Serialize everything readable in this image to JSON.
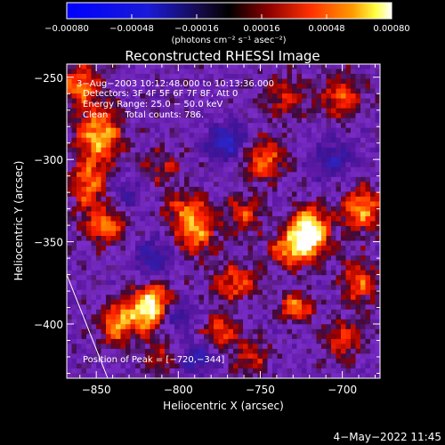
{
  "chart_data": {
    "type": "heatmap",
    "title": "Reconstructed RHESSI Image",
    "xlabel": "Heliocentric X (arcsec)",
    "ylabel": "Heliocentric Y (arcsec)",
    "xlim": [
      -868,
      -677
    ],
    "ylim": [
      -433,
      -242
    ],
    "x_ticks": [
      -850,
      -800,
      -750,
      -700
    ],
    "y_ticks": [
      -250,
      -300,
      -350,
      -400
    ],
    "x_tick_labels": [
      "−850",
      "−800",
      "−750",
      "−700"
    ],
    "y_tick_labels": [
      "−250",
      "−300",
      "−350",
      "−400"
    ],
    "colorbar": {
      "vmin": -0.0008,
      "vmax": 0.0008,
      "ticks": [
        -0.0008,
        -0.00048,
        -0.00016,
        0.00016,
        0.00048,
        0.0008
      ],
      "tick_labels": [
        "−0.00080",
        "−0.00048",
        "−0.00016",
        "0.00016",
        "0.00048",
        "0.00080"
      ],
      "units_label": "(photons cm⁻² s⁻¹ asec⁻²)"
    },
    "annotations": [
      "3−Aug−2003 10:12:48.000 to 10:13:36.000",
      "Detectors: 3F 4F 5F 6F 7F 8F, Att 0",
      "Energy Range: 25.0 − 50.0 keV",
      "Clean      Total counts: 786."
    ],
    "peak_label": "Position of Peak = [−720,−344]",
    "peak_position": [
      -720,
      -344
    ],
    "limb_line": [
      [
        -868,
        -370
      ],
      [
        -843,
        -433
      ]
    ],
    "colors": {
      "negative": "#0000ff",
      "zero": "#000000",
      "low": "#7a2dc8",
      "mid": "#ff2000",
      "high": "#ffff60",
      "max": "#ffffff"
    },
    "blobs": [
      {
        "x": -720,
        "y": -344,
        "amp": 0.0008,
        "sx": 8,
        "sy": 10
      },
      {
        "x": -732,
        "y": -355,
        "amp": 0.00045,
        "sx": 9,
        "sy": 8
      },
      {
        "x": -728,
        "y": -390,
        "amp": 0.0005,
        "sx": 7,
        "sy": 6
      },
      {
        "x": -688,
        "y": -330,
        "amp": 0.0005,
        "sx": 9,
        "sy": 10
      },
      {
        "x": -690,
        "y": -375,
        "amp": 0.0004,
        "sx": 8,
        "sy": 10
      },
      {
        "x": -700,
        "y": -262,
        "amp": 0.0004,
        "sx": 9,
        "sy": 9
      },
      {
        "x": -748,
        "y": -300,
        "amp": 0.00045,
        "sx": 10,
        "sy": 9
      },
      {
        "x": -760,
        "y": -333,
        "amp": 0.00035,
        "sx": 8,
        "sy": 8
      },
      {
        "x": -765,
        "y": -375,
        "amp": 0.0004,
        "sx": 10,
        "sy": 8
      },
      {
        "x": -790,
        "y": -345,
        "amp": 0.0005,
        "sx": 9,
        "sy": 9
      },
      {
        "x": -795,
        "y": -330,
        "amp": 0.00035,
        "sx": 10,
        "sy": 7
      },
      {
        "x": -775,
        "y": -405,
        "amp": 0.0004,
        "sx": 8,
        "sy": 7
      },
      {
        "x": -815,
        "y": -385,
        "amp": 0.00045,
        "sx": 9,
        "sy": 8
      },
      {
        "x": -820,
        "y": -395,
        "amp": 0.0005,
        "sx": 8,
        "sy": 8
      },
      {
        "x": -848,
        "y": -285,
        "amp": 0.00055,
        "sx": 10,
        "sy": 12
      },
      {
        "x": -855,
        "y": -315,
        "amp": 0.00045,
        "sx": 8,
        "sy": 10
      },
      {
        "x": -845,
        "y": -340,
        "amp": 0.00045,
        "sx": 9,
        "sy": 8
      },
      {
        "x": -860,
        "y": -255,
        "amp": 0.00045,
        "sx": 9,
        "sy": 9
      },
      {
        "x": -838,
        "y": -400,
        "amp": 0.0005,
        "sx": 7,
        "sy": 9
      },
      {
        "x": -810,
        "y": -305,
        "amp": 0.00025,
        "sx": 9,
        "sy": 8
      },
      {
        "x": -735,
        "y": -262,
        "amp": 0.0003,
        "sx": 10,
        "sy": 9
      },
      {
        "x": -700,
        "y": -410,
        "amp": 0.00035,
        "sx": 9,
        "sy": 8
      },
      {
        "x": -755,
        "y": -420,
        "amp": 0.0003,
        "sx": 9,
        "sy": 7
      },
      {
        "x": -810,
        "y": -420,
        "amp": 0.00025,
        "sx": 8,
        "sy": 7
      },
      {
        "x": -770,
        "y": -290,
        "amp": -0.00045,
        "sx": 9,
        "sy": 8
      },
      {
        "x": -815,
        "y": -360,
        "amp": -0.00035,
        "sx": 9,
        "sy": 8
      },
      {
        "x": -800,
        "y": -395,
        "amp": -0.0003,
        "sx": 8,
        "sy": 7
      },
      {
        "x": -705,
        "y": -300,
        "amp": -0.0003,
        "sx": 10,
        "sy": 9
      },
      {
        "x": -788,
        "y": -420,
        "amp": -0.00035,
        "sx": 8,
        "sy": 7
      },
      {
        "x": -830,
        "y": -320,
        "amp": -0.0002,
        "sx": 8,
        "sy": 8
      }
    ]
  },
  "footer": {
    "date_stamp": "4−May−2022 11:45"
  }
}
